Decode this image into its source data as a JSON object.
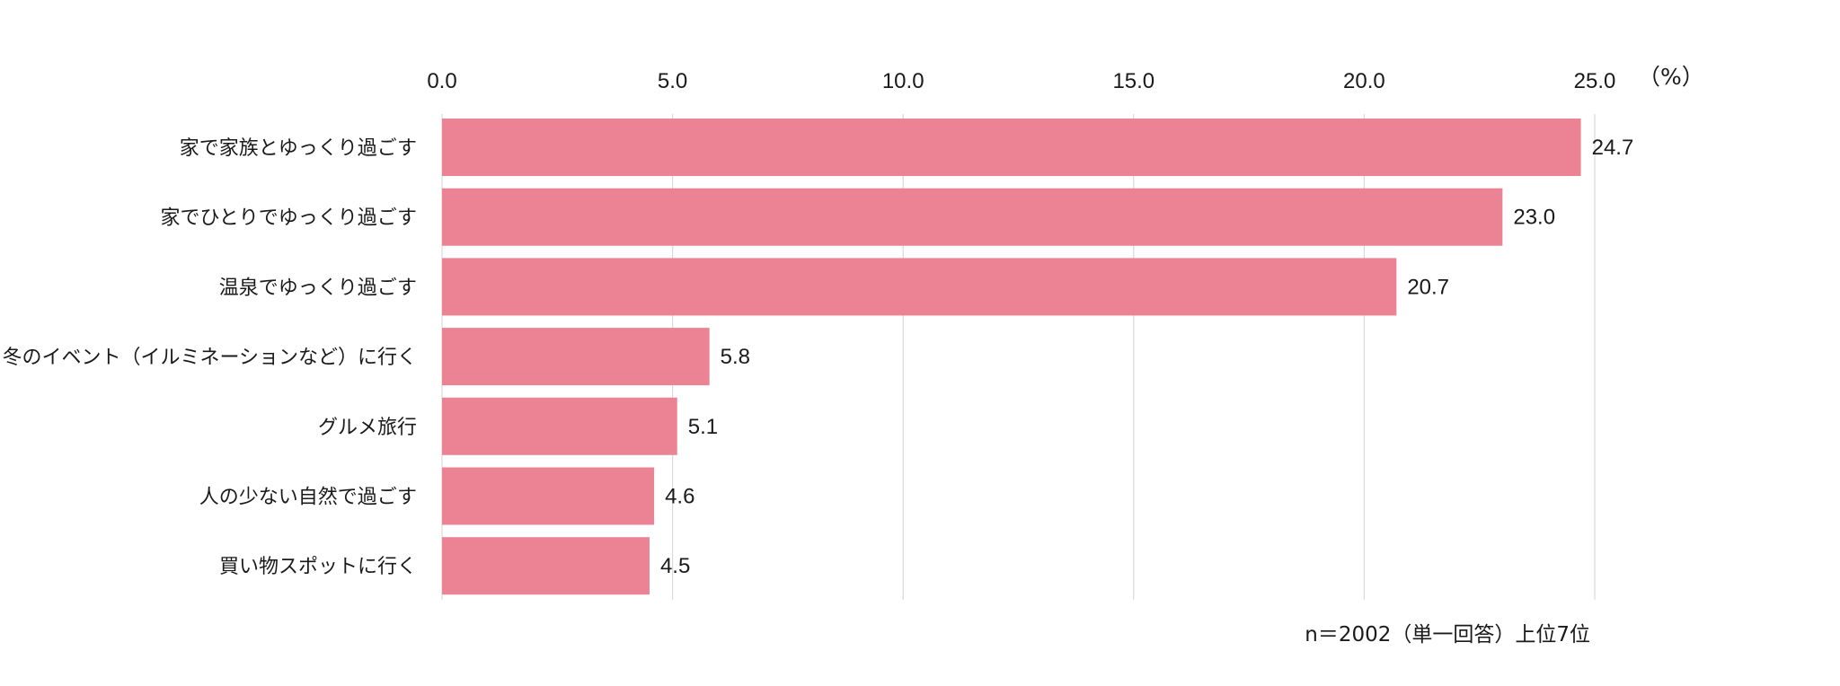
{
  "chart_data": {
    "type": "bar",
    "orientation": "horizontal",
    "title": "",
    "categories": [
      "家で家族とゆっくり過ごす",
      "家でひとりでゆっくり過ごす",
      "温泉でゆっくり過ごす",
      "冬のイベント（イルミネーションなど）に行く",
      "グルメ旅行",
      "人の少ない自然で過ごす",
      "買い物スポットに行く"
    ],
    "values": [
      24.7,
      23.0,
      20.7,
      5.8,
      5.1,
      4.6,
      4.5
    ],
    "value_labels": [
      "24.7",
      "23.0",
      "20.7",
      "5.8",
      "5.1",
      "4.6",
      "4.5"
    ],
    "xlim": [
      0,
      25
    ],
    "x_ticks": [
      0,
      5,
      10,
      15,
      20,
      25
    ],
    "x_tick_labels": [
      "0.0",
      "5.0",
      "10.0",
      "15.0",
      "20.0",
      "25.0"
    ],
    "x_axis_position": "top",
    "xlabel": "（%）",
    "ylabel": "",
    "grid": true,
    "bar_color": "#ec8394",
    "grid_color": "#d9d9d9",
    "note": "n＝2002（単一回答）上位7位"
  }
}
